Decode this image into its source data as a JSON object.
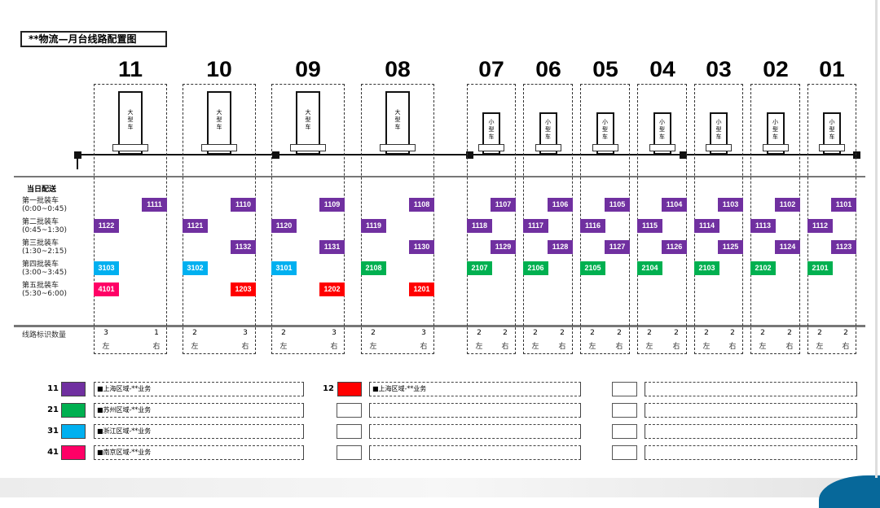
{
  "title": "**物流—月台线路配置图",
  "section_label": "当日配送",
  "count_label": "线路标识数量",
  "left_label": "左",
  "right_label": "右",
  "colors": {
    "purple": "#7030a0",
    "green": "#00b050",
    "cyan": "#00b0f0",
    "pink": "#ff0066",
    "red": "#ff0000"
  },
  "batches": [
    {
      "name": "第一批装车",
      "time": "(0:00~0:45)"
    },
    {
      "name": "第二批装车",
      "time": "(0:45~1:30)"
    },
    {
      "name": "第三批装车",
      "time": "(1:30~2:15)"
    },
    {
      "name": "第四批装车",
      "time": "(3:00~3:45)"
    },
    {
      "name": "第五批装车",
      "time": "(5:30~6:00)"
    }
  ],
  "docks": [
    {
      "number": "11",
      "truck": "大型车",
      "size": "large",
      "left_count": "3",
      "right_count": "1",
      "routes": [
        {
          "row": 0,
          "side": "right",
          "code": "1111",
          "color": "purple"
        },
        {
          "row": 1,
          "side": "left",
          "code": "1122",
          "color": "purple"
        },
        {
          "row": 3,
          "side": "left",
          "code": "3103",
          "color": "cyan"
        },
        {
          "row": 4,
          "side": "left",
          "code": "4101",
          "color": "pink"
        }
      ]
    },
    {
      "number": "10",
      "truck": "大型车",
      "size": "large",
      "left_count": "2",
      "right_count": "3",
      "routes": [
        {
          "row": 0,
          "side": "right",
          "code": "1110",
          "color": "purple"
        },
        {
          "row": 1,
          "side": "left",
          "code": "1121",
          "color": "purple"
        },
        {
          "row": 2,
          "side": "right",
          "code": "1132",
          "color": "purple"
        },
        {
          "row": 3,
          "side": "left",
          "code": "3102",
          "color": "cyan"
        },
        {
          "row": 4,
          "side": "right",
          "code": "1203",
          "color": "red"
        }
      ]
    },
    {
      "number": "09",
      "truck": "大型车",
      "size": "large",
      "left_count": "2",
      "right_count": "3",
      "routes": [
        {
          "row": 0,
          "side": "right",
          "code": "1109",
          "color": "purple"
        },
        {
          "row": 1,
          "side": "left",
          "code": "1120",
          "color": "purple"
        },
        {
          "row": 2,
          "side": "right",
          "code": "1131",
          "color": "purple"
        },
        {
          "row": 3,
          "side": "left",
          "code": "3101",
          "color": "cyan"
        },
        {
          "row": 4,
          "side": "right",
          "code": "1202",
          "color": "red"
        }
      ]
    },
    {
      "number": "08",
      "truck": "大型车",
      "size": "large",
      "left_count": "2",
      "right_count": "3",
      "routes": [
        {
          "row": 0,
          "side": "right",
          "code": "1108",
          "color": "purple"
        },
        {
          "row": 1,
          "side": "left",
          "code": "1119",
          "color": "purple"
        },
        {
          "row": 2,
          "side": "right",
          "code": "1130",
          "color": "purple"
        },
        {
          "row": 3,
          "side": "left",
          "code": "2108",
          "color": "green"
        },
        {
          "row": 4,
          "side": "right",
          "code": "1201",
          "color": "red"
        }
      ]
    },
    {
      "number": "07",
      "truck": "小型车",
      "size": "small",
      "left_count": "2",
      "right_count": "2",
      "routes": [
        {
          "row": 0,
          "side": "right",
          "code": "1107",
          "color": "purple"
        },
        {
          "row": 1,
          "side": "left",
          "code": "1118",
          "color": "purple"
        },
        {
          "row": 2,
          "side": "right",
          "code": "1129",
          "color": "purple"
        },
        {
          "row": 3,
          "side": "left",
          "code": "2107",
          "color": "green"
        }
      ]
    },
    {
      "number": "06",
      "truck": "小型车",
      "size": "small",
      "left_count": "2",
      "right_count": "2",
      "routes": [
        {
          "row": 0,
          "side": "right",
          "code": "1106",
          "color": "purple"
        },
        {
          "row": 1,
          "side": "left",
          "code": "1117",
          "color": "purple"
        },
        {
          "row": 2,
          "side": "right",
          "code": "1128",
          "color": "purple"
        },
        {
          "row": 3,
          "side": "left",
          "code": "2106",
          "color": "green"
        }
      ]
    },
    {
      "number": "05",
      "truck": "小型车",
      "size": "small",
      "left_count": "2",
      "right_count": "2",
      "routes": [
        {
          "row": 0,
          "side": "right",
          "code": "1105",
          "color": "purple"
        },
        {
          "row": 1,
          "side": "left",
          "code": "1116",
          "color": "purple"
        },
        {
          "row": 2,
          "side": "right",
          "code": "1127",
          "color": "purple"
        },
        {
          "row": 3,
          "side": "left",
          "code": "2105",
          "color": "green"
        }
      ]
    },
    {
      "number": "04",
      "truck": "小型车",
      "size": "small",
      "left_count": "2",
      "right_count": "2",
      "routes": [
        {
          "row": 0,
          "side": "right",
          "code": "1104",
          "color": "purple"
        },
        {
          "row": 1,
          "side": "left",
          "code": "1115",
          "color": "purple"
        },
        {
          "row": 2,
          "side": "right",
          "code": "1126",
          "color": "purple"
        },
        {
          "row": 3,
          "side": "left",
          "code": "2104",
          "color": "green"
        }
      ]
    },
    {
      "number": "03",
      "truck": "小型车",
      "size": "small",
      "left_count": "2",
      "right_count": "2",
      "routes": [
        {
          "row": 0,
          "side": "right",
          "code": "1103",
          "color": "purple"
        },
        {
          "row": 1,
          "side": "left",
          "code": "1114",
          "color": "purple"
        },
        {
          "row": 2,
          "side": "right",
          "code": "1125",
          "color": "purple"
        },
        {
          "row": 3,
          "side": "left",
          "code": "2103",
          "color": "green"
        }
      ]
    },
    {
      "number": "02",
      "truck": "小型车",
      "size": "small",
      "left_count": "2",
      "right_count": "2",
      "routes": [
        {
          "row": 0,
          "side": "right",
          "code": "1102",
          "color": "purple"
        },
        {
          "row": 1,
          "side": "left",
          "code": "1113",
          "color": "purple"
        },
        {
          "row": 2,
          "side": "right",
          "code": "1124",
          "color": "purple"
        },
        {
          "row": 3,
          "side": "left",
          "code": "2102",
          "color": "green"
        }
      ]
    },
    {
      "number": "01",
      "truck": "小型车",
      "size": "small",
      "left_count": "2",
      "right_count": "2",
      "routes": [
        {
          "row": 0,
          "side": "right",
          "code": "1101",
          "color": "purple"
        },
        {
          "row": 1,
          "side": "left",
          "code": "1112",
          "color": "purple"
        },
        {
          "row": 2,
          "side": "right",
          "code": "1123",
          "color": "purple"
        },
        {
          "row": 3,
          "side": "left",
          "code": "2101",
          "color": "green"
        }
      ]
    }
  ],
  "legend": [
    [
      {
        "code": "11",
        "color": "purple",
        "text": "■上海区域-**业务"
      },
      {
        "code": "12",
        "color": "red",
        "text": "■上海区域-**业务"
      },
      {
        "code": "",
        "color": "",
        "text": ""
      }
    ],
    [
      {
        "code": "21",
        "color": "green",
        "text": "■苏州区域-**业务"
      },
      {
        "code": "",
        "color": "",
        "text": ""
      },
      {
        "code": "",
        "color": "",
        "text": ""
      }
    ],
    [
      {
        "code": "31",
        "color": "cyan",
        "text": "■浙江区域-**业务"
      },
      {
        "code": "",
        "color": "",
        "text": ""
      },
      {
        "code": "",
        "color": "",
        "text": ""
      }
    ],
    [
      {
        "code": "41",
        "color": "pink",
        "text": "■南京区域-**业务"
      },
      {
        "code": "",
        "color": "",
        "text": ""
      },
      {
        "code": "",
        "color": "",
        "text": ""
      }
    ]
  ]
}
